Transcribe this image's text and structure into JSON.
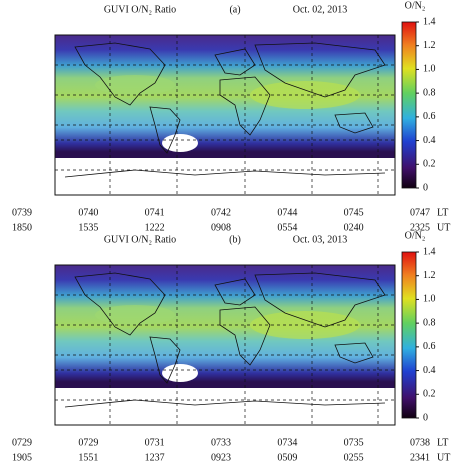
{
  "panels": [
    {
      "label": "(a)",
      "title": "GUVI O/N₂ Ratio",
      "date": "Oct. 02, 2013",
      "colorbar": {
        "label": "O/N₂",
        "lim": [
          0,
          1.4
        ],
        "ticks": [
          0,
          0.2,
          0.4,
          0.6,
          0.8,
          {
            "value": 1,
            "label": "1.0"
          },
          1.2,
          1.4
        ]
      },
      "lt": [
        "0739",
        "0740",
        "0741",
        "0742",
        "0744",
        "0745",
        "0747"
      ],
      "ut": [
        "1850",
        "1535",
        "1222",
        "0908",
        "0554",
        "0240",
        "2325"
      ],
      "lt_unit": "LT",
      "ut_unit": "UT"
    },
    {
      "label": "(b)",
      "title": "GUVI O/N₂ Ratio",
      "date": "Oct. 03, 2013",
      "colorbar": {
        "label": "O/N₂",
        "lim": [
          0,
          1.4
        ],
        "ticks": [
          0,
          0.2,
          0.4,
          0.6,
          0.8,
          {
            "value": 1,
            "label": "1.0"
          },
          1.2,
          1.4
        ]
      },
      "lt": [
        "0729",
        "0729",
        "0731",
        "0733",
        "0734",
        "0735",
        "0738"
      ],
      "ut": [
        "1905",
        "1551",
        "1237",
        "0923",
        "0509",
        "0255",
        "2341"
      ],
      "lt_unit": "LT",
      "ut_unit": "UT"
    }
  ]
}
